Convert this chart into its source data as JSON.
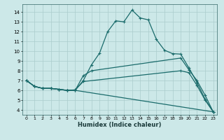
{
  "xlabel": "Humidex (Indice chaleur)",
  "bg_color": "#cce8e8",
  "grid_color": "#aacccc",
  "line_color": "#1a6b6b",
  "xlim": [
    -0.5,
    23.5
  ],
  "ylim": [
    3.5,
    14.8
  ],
  "xticks": [
    0,
    1,
    2,
    3,
    4,
    5,
    6,
    7,
    8,
    9,
    10,
    11,
    12,
    13,
    14,
    15,
    16,
    17,
    18,
    19,
    20,
    21,
    22,
    23
  ],
  "yticks": [
    4,
    5,
    6,
    7,
    8,
    9,
    10,
    11,
    12,
    13,
    14
  ],
  "series1": [
    [
      0,
      7.0
    ],
    [
      1,
      6.4
    ],
    [
      2,
      6.2
    ],
    [
      3,
      6.2
    ],
    [
      4,
      6.1
    ],
    [
      5,
      6.0
    ],
    [
      6,
      6.0
    ],
    [
      7,
      7.0
    ],
    [
      8,
      8.6
    ],
    [
      9,
      9.8
    ],
    [
      10,
      12.0
    ],
    [
      11,
      13.1
    ],
    [
      12,
      13.0
    ],
    [
      13,
      14.2
    ],
    [
      14,
      13.4
    ],
    [
      15,
      13.2
    ],
    [
      16,
      11.2
    ],
    [
      17,
      10.1
    ],
    [
      18,
      9.75
    ],
    [
      19,
      9.7
    ],
    [
      20,
      8.3
    ],
    [
      21,
      6.8
    ],
    [
      22,
      5.1
    ],
    [
      23,
      3.8
    ]
  ],
  "series2": [
    [
      0,
      7.0
    ],
    [
      1,
      6.4
    ],
    [
      2,
      6.2
    ],
    [
      3,
      6.2
    ],
    [
      4,
      6.1
    ],
    [
      5,
      6.0
    ],
    [
      6,
      6.0
    ],
    [
      7,
      7.5
    ],
    [
      8,
      8.0
    ],
    [
      19,
      9.3
    ],
    [
      20,
      8.1
    ],
    [
      21,
      7.0
    ],
    [
      22,
      5.5
    ],
    [
      23,
      3.8
    ]
  ],
  "series3": [
    [
      0,
      7.0
    ],
    [
      1,
      6.4
    ],
    [
      2,
      6.2
    ],
    [
      3,
      6.2
    ],
    [
      4,
      6.1
    ],
    [
      5,
      6.0
    ],
    [
      6,
      6.05
    ],
    [
      7,
      6.9
    ],
    [
      19,
      8.0
    ],
    [
      20,
      7.8
    ],
    [
      21,
      6.5
    ],
    [
      22,
      5.0
    ],
    [
      23,
      3.8
    ]
  ],
  "series4": [
    [
      0,
      7.0
    ],
    [
      1,
      6.4
    ],
    [
      2,
      6.2
    ],
    [
      3,
      6.2
    ],
    [
      4,
      6.1
    ],
    [
      5,
      6.0
    ],
    [
      6,
      6.0
    ],
    [
      23,
      3.8
    ]
  ]
}
